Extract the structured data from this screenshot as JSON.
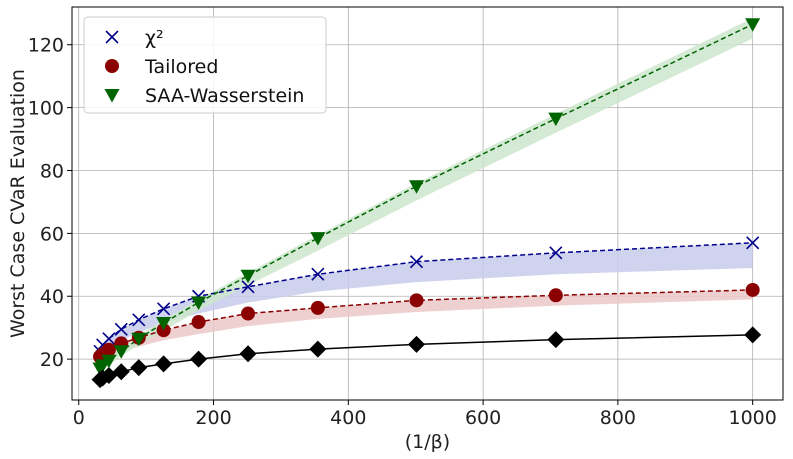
{
  "chart_data": {
    "type": "line",
    "xlabel": "(1/β)",
    "ylabel": "Worst Case CVaR Evaluation",
    "xlim": [
      -10,
      1045
    ],
    "ylim": [
      7,
      132
    ],
    "xticks": [
      0,
      200,
      400,
      600,
      800,
      1000
    ],
    "yticks": [
      20,
      40,
      60,
      80,
      100,
      120
    ],
    "grid": true,
    "legend_position": "top-left",
    "x": [
      31.6,
      35.5,
      44.7,
      63.1,
      89.1,
      125.9,
      177.8,
      251.2,
      354.8,
      501.2,
      707.9,
      1000
    ],
    "series": [
      {
        "name": "χ²",
        "marker": "x",
        "color": "#00008b",
        "line": "dashed",
        "values": [
          22.5,
          24.5,
          26.5,
          29.5,
          32.5,
          36.0,
          40.0,
          43.0,
          47.0,
          51.0,
          53.8,
          57.0
        ],
        "band_low": [
          20.0,
          21.5,
          23.5,
          26.0,
          28.5,
          31.5,
          34.5,
          38.0,
          41.5,
          44.5,
          47.0,
          49.0
        ],
        "band_high": [
          22.5,
          24.5,
          26.5,
          29.5,
          32.5,
          36.0,
          40.0,
          43.0,
          47.0,
          51.0,
          53.8,
          57.0
        ]
      },
      {
        "name": "Tailored",
        "marker": "circle",
        "color": "#8b0000",
        "line": "dashed",
        "values": [
          20.8,
          21.5,
          23.0,
          25.0,
          26.8,
          29.2,
          31.8,
          34.5,
          36.3,
          38.7,
          40.3,
          42.0
        ],
        "band_low": [
          18.5,
          19.2,
          20.5,
          22.3,
          24.0,
          26.0,
          28.0,
          30.5,
          32.8,
          35.0,
          37.0,
          39.0
        ],
        "band_high": [
          20.8,
          21.5,
          23.0,
          25.0,
          26.8,
          29.2,
          31.8,
          34.5,
          36.3,
          38.7,
          40.3,
          42.0
        ]
      },
      {
        "name": "SAA-Wasserstein",
        "marker": "triangle-down",
        "color": "#006400",
        "line": "dashed",
        "values": [
          17.0,
          18.0,
          19.5,
          22.5,
          26.5,
          31.5,
          38.0,
          46.5,
          58.5,
          75.0,
          96.5,
          126.5
        ],
        "band_low": [
          15.5,
          16.5,
          18.0,
          21.0,
          24.5,
          29.0,
          35.5,
          43.5,
          54.5,
          70.5,
          92.0,
          122.0
        ],
        "band_high": [
          18.0,
          19.0,
          20.5,
          23.5,
          27.5,
          32.5,
          39.0,
          47.5,
          59.5,
          76.0,
          98.0,
          128.5
        ]
      },
      {
        "marker": "diamond",
        "color": "#000000",
        "line": "solid",
        "values": [
          13.5,
          14.0,
          14.8,
          16.0,
          17.3,
          18.5,
          20.0,
          21.7,
          23.2,
          24.7,
          26.2,
          27.7
        ]
      }
    ]
  }
}
